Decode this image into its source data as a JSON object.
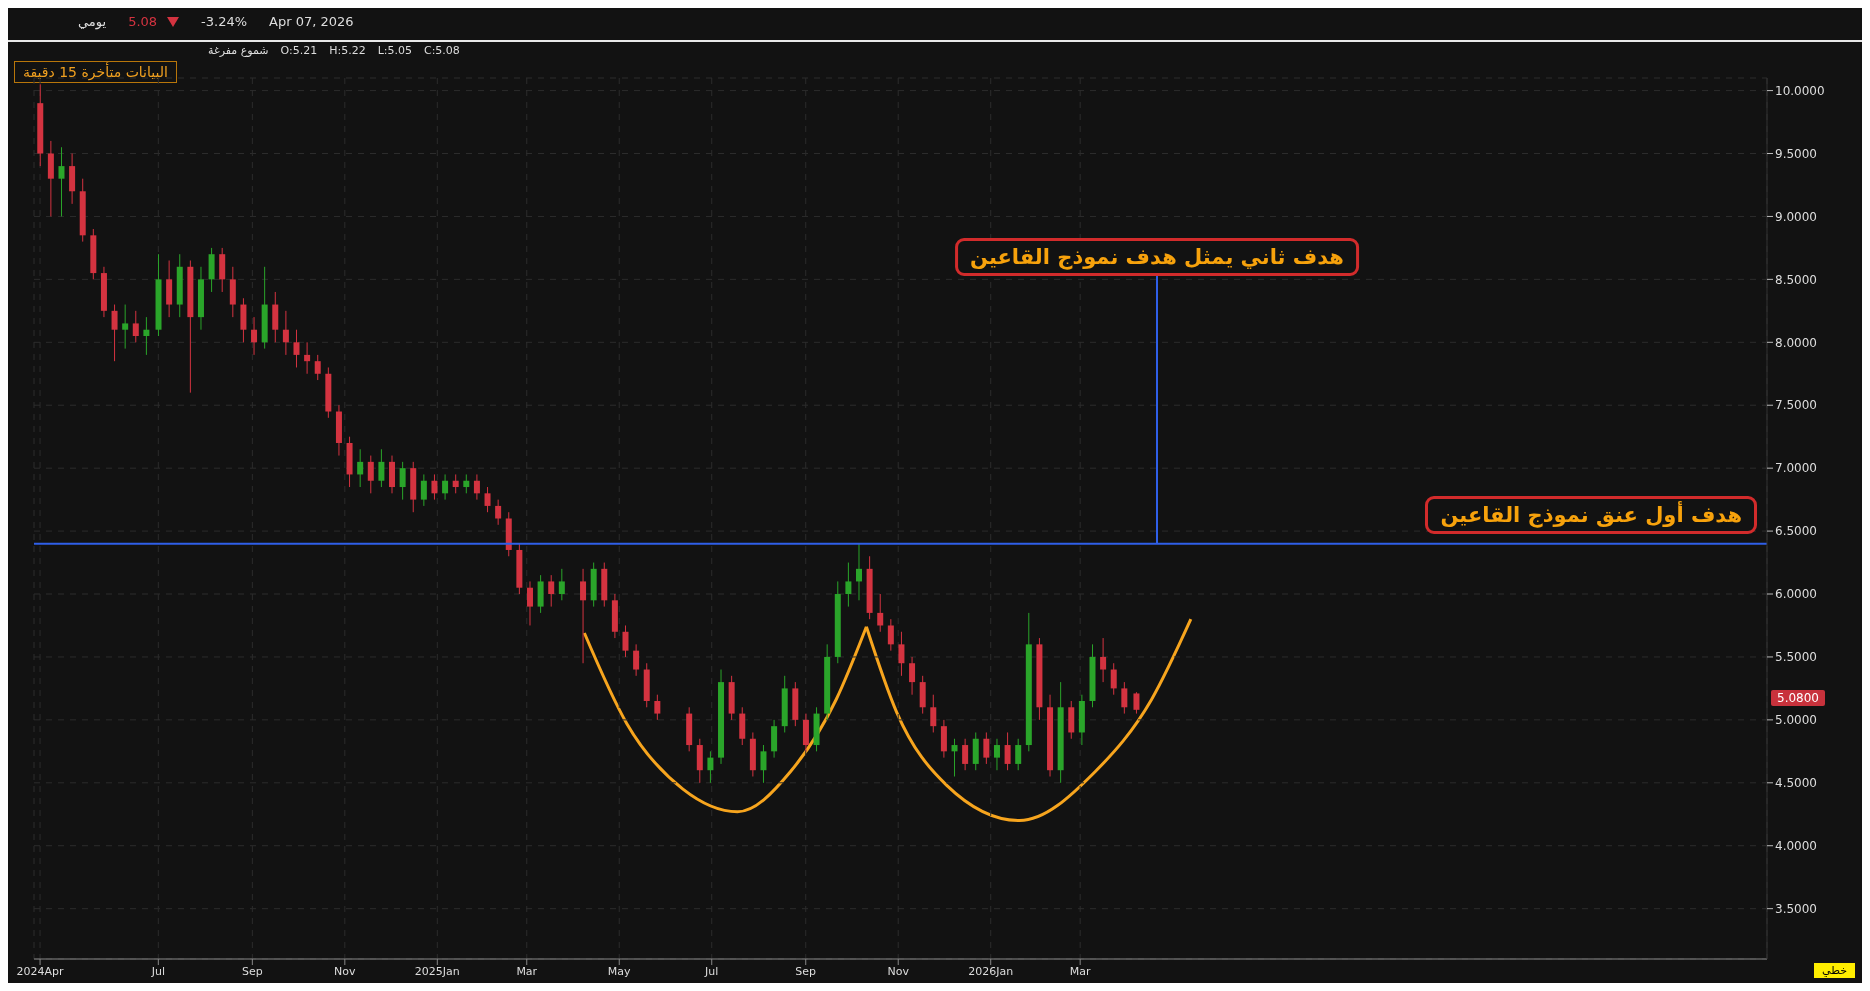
{
  "chart_data": {
    "type": "candlestick",
    "x": [
      "2024-04-14",
      "2024-04-21",
      "2024-04-28",
      "2024-05-05",
      "2024-05-12",
      "2024-05-19",
      "2024-05-26",
      "2024-06-02",
      "2024-06-09",
      "2024-06-16",
      "2024-06-23",
      "2024-07-01",
      "2024-07-08",
      "2024-07-15",
      "2024-07-22",
      "2024-07-29",
      "2024-08-05",
      "2024-08-12",
      "2024-08-19",
      "2024-08-26",
      "2024-09-02",
      "2024-09-09",
      "2024-09-16",
      "2024-09-23",
      "2024-09-30",
      "2024-10-07",
      "2024-10-14",
      "2024-10-21",
      "2024-10-28",
      "2024-11-04",
      "2024-11-11",
      "2024-11-18",
      "2024-11-25",
      "2024-12-02",
      "2024-12-09",
      "2024-12-16",
      "2024-12-23",
      "2024-12-30",
      "2025-01-06",
      "2025-01-13",
      "2025-01-20",
      "2025-01-27",
      "2025-02-03",
      "2025-02-10",
      "2025-02-17",
      "2025-02-24",
      "2025-03-03",
      "2025-03-10",
      "2025-03-17",
      "2025-03-24",
      "2025-04-07",
      "2025-04-14",
      "2025-04-21",
      "2025-04-28",
      "2025-05-05",
      "2025-05-12",
      "2025-05-19",
      "2025-05-26",
      "2025-06-16",
      "2025-06-23",
      "2025-06-30",
      "2025-07-07",
      "2025-07-14",
      "2025-07-21",
      "2025-07-28",
      "2025-08-04",
      "2025-08-11",
      "2025-08-18",
      "2025-08-25",
      "2025-09-01",
      "2025-09-08",
      "2025-09-15",
      "2025-09-22",
      "2025-09-29",
      "2025-10-06",
      "2025-10-13",
      "2025-10-20",
      "2025-10-27",
      "2025-11-03",
      "2025-11-10",
      "2025-11-17",
      "2025-11-24",
      "2025-12-01",
      "2025-12-08",
      "2025-12-15",
      "2025-12-22",
      "2025-12-29",
      "2026-01-05",
      "2026-01-12",
      "2026-01-19",
      "2026-01-26",
      "2026-02-02",
      "2026-02-09",
      "2026-02-16",
      "2026-02-23",
      "2026-03-02",
      "2026-03-09",
      "2026-03-16",
      "2026-03-23",
      "2026-03-30",
      "2026-04-07"
    ],
    "ohlc": [
      [
        9.9,
        10.05,
        9.4,
        9.5
      ],
      [
        9.5,
        9.6,
        9.0,
        9.3
      ],
      [
        9.3,
        9.55,
        9.0,
        9.4
      ],
      [
        9.4,
        9.5,
        9.1,
        9.2
      ],
      [
        9.2,
        9.3,
        8.8,
        8.85
      ],
      [
        8.85,
        8.9,
        8.5,
        8.55
      ],
      [
        8.55,
        8.6,
        8.2,
        8.25
      ],
      [
        8.25,
        8.3,
        7.85,
        8.1
      ],
      [
        8.1,
        8.3,
        7.95,
        8.15
      ],
      [
        8.15,
        8.25,
        8.0,
        8.05
      ],
      [
        8.05,
        8.2,
        7.9,
        8.1
      ],
      [
        8.1,
        8.7,
        8.05,
        8.5
      ],
      [
        8.5,
        8.65,
        8.2,
        8.3
      ],
      [
        8.3,
        8.7,
        8.2,
        8.6
      ],
      [
        8.6,
        8.65,
        7.6,
        8.2
      ],
      [
        8.2,
        8.6,
        8.1,
        8.5
      ],
      [
        8.5,
        8.75,
        8.4,
        8.7
      ],
      [
        8.7,
        8.75,
        8.4,
        8.5
      ],
      [
        8.5,
        8.6,
        8.2,
        8.3
      ],
      [
        8.3,
        8.35,
        8.0,
        8.1
      ],
      [
        8.1,
        8.2,
        7.9,
        8.0
      ],
      [
        8.0,
        8.6,
        7.95,
        8.3
      ],
      [
        8.3,
        8.4,
        8.0,
        8.1
      ],
      [
        8.1,
        8.25,
        7.9,
        8.0
      ],
      [
        8.0,
        8.1,
        7.8,
        7.9
      ],
      [
        7.9,
        8.0,
        7.75,
        7.85
      ],
      [
        7.85,
        7.9,
        7.7,
        7.75
      ],
      [
        7.75,
        7.8,
        7.4,
        7.45
      ],
      [
        7.45,
        7.5,
        7.1,
        7.2
      ],
      [
        7.2,
        7.25,
        6.85,
        6.95
      ],
      [
        6.95,
        7.15,
        6.85,
        7.05
      ],
      [
        7.05,
        7.1,
        6.8,
        6.9
      ],
      [
        6.9,
        7.15,
        6.85,
        7.05
      ],
      [
        7.05,
        7.1,
        6.8,
        6.85
      ],
      [
        6.85,
        7.05,
        6.75,
        7.0
      ],
      [
        7.0,
        7.05,
        6.65,
        6.75
      ],
      [
        6.75,
        6.95,
        6.7,
        6.9
      ],
      [
        6.9,
        6.95,
        6.75,
        6.8
      ],
      [
        6.8,
        6.95,
        6.75,
        6.9
      ],
      [
        6.9,
        6.95,
        6.8,
        6.85
      ],
      [
        6.85,
        6.95,
        6.8,
        6.9
      ],
      [
        6.9,
        6.95,
        6.75,
        6.8
      ],
      [
        6.8,
        6.85,
        6.65,
        6.7
      ],
      [
        6.7,
        6.75,
        6.55,
        6.6
      ],
      [
        6.6,
        6.65,
        6.3,
        6.35
      ],
      [
        6.35,
        6.4,
        6.0,
        6.05
      ],
      [
        6.05,
        6.1,
        5.75,
        5.9
      ],
      [
        5.9,
        6.15,
        5.85,
        6.1
      ],
      [
        6.1,
        6.15,
        5.9,
        6.0
      ],
      [
        6.0,
        6.2,
        5.95,
        6.1
      ],
      [
        6.1,
        6.2,
        5.45,
        5.95
      ],
      [
        5.95,
        6.25,
        5.9,
        6.2
      ],
      [
        6.2,
        6.25,
        5.9,
        5.95
      ],
      [
        5.95,
        6.0,
        5.65,
        5.7
      ],
      [
        5.7,
        5.75,
        5.5,
        5.55
      ],
      [
        5.55,
        5.6,
        5.35,
        5.4
      ],
      [
        5.4,
        5.45,
        5.1,
        5.15
      ],
      [
        5.15,
        5.2,
        5.0,
        5.05
      ],
      [
        5.05,
        5.1,
        4.75,
        4.8
      ],
      [
        4.8,
        4.85,
        4.5,
        4.6
      ],
      [
        4.6,
        4.75,
        4.5,
        4.7
      ],
      [
        4.7,
        5.4,
        4.65,
        5.3
      ],
      [
        5.3,
        5.35,
        5.0,
        5.05
      ],
      [
        5.05,
        5.1,
        4.8,
        4.85
      ],
      [
        4.85,
        4.9,
        4.55,
        4.6
      ],
      [
        4.6,
        4.8,
        4.5,
        4.75
      ],
      [
        4.75,
        5.0,
        4.7,
        4.95
      ],
      [
        4.95,
        5.35,
        4.9,
        5.25
      ],
      [
        5.25,
        5.3,
        4.95,
        5.0
      ],
      [
        5.0,
        5.05,
        4.75,
        4.8
      ],
      [
        4.8,
        5.1,
        4.75,
        5.05
      ],
      [
        5.05,
        5.6,
        5.0,
        5.5
      ],
      [
        5.5,
        6.1,
        5.45,
        6.0
      ],
      [
        6.0,
        6.25,
        5.9,
        6.1
      ],
      [
        6.1,
        6.4,
        5.95,
        6.2
      ],
      [
        6.2,
        6.3,
        5.8,
        5.85
      ],
      [
        5.85,
        6.0,
        5.7,
        5.75
      ],
      [
        5.75,
        5.8,
        5.55,
        5.6
      ],
      [
        5.6,
        5.7,
        5.35,
        5.45
      ],
      [
        5.45,
        5.5,
        5.2,
        5.3
      ],
      [
        5.3,
        5.35,
        5.05,
        5.1
      ],
      [
        5.1,
        5.2,
        4.9,
        4.95
      ],
      [
        4.95,
        5.0,
        4.7,
        4.75
      ],
      [
        4.75,
        4.85,
        4.55,
        4.8
      ],
      [
        4.8,
        4.85,
        4.6,
        4.65
      ],
      [
        4.65,
        4.9,
        4.6,
        4.85
      ],
      [
        4.85,
        4.9,
        4.65,
        4.7
      ],
      [
        4.7,
        4.85,
        4.6,
        4.8
      ],
      [
        4.8,
        4.9,
        4.6,
        4.65
      ],
      [
        4.65,
        4.85,
        4.6,
        4.8
      ],
      [
        4.8,
        5.85,
        4.75,
        5.6
      ],
      [
        5.6,
        5.65,
        5.0,
        5.1
      ],
      [
        5.1,
        5.2,
        4.55,
        4.6
      ],
      [
        4.6,
        5.3,
        4.5,
        5.1
      ],
      [
        5.1,
        5.15,
        4.85,
        4.9
      ],
      [
        4.9,
        5.2,
        4.8,
        5.15
      ],
      [
        5.15,
        5.6,
        5.1,
        5.5
      ],
      [
        5.5,
        5.65,
        5.3,
        5.4
      ],
      [
        5.4,
        5.45,
        5.2,
        5.25
      ],
      [
        5.25,
        5.3,
        5.05,
        5.1
      ],
      [
        5.21,
        5.22,
        5.05,
        5.08
      ]
    ],
    "xlim": [
      "2024-04-10",
      "2027-05-28"
    ],
    "xticks": [
      {
        "value": "2024-04-14",
        "label": "2024Apr"
      },
      {
        "value": "2024-07-01",
        "label": "Jul"
      },
      {
        "value": "2024-09-01",
        "label": "Sep"
      },
      {
        "value": "2024-11-01",
        "label": "Nov"
      },
      {
        "value": "2025-01-01",
        "label": "2025Jan"
      },
      {
        "value": "2025-03-01",
        "label": "Mar"
      },
      {
        "value": "2025-05-01",
        "label": "May"
      },
      {
        "value": "2025-07-01",
        "label": "Jul"
      },
      {
        "value": "2025-09-01",
        "label": "Sep"
      },
      {
        "value": "2025-11-01",
        "label": "Nov"
      },
      {
        "value": "2026-01-01",
        "label": "2026Jan"
      },
      {
        "value": "2026-03-01",
        "label": "Mar"
      }
    ],
    "ylim": [
      3.1,
      10.1
    ],
    "yticks": [
      {
        "value": 3.5,
        "label": "3.5000"
      },
      {
        "value": 4,
        "label": "4.0000"
      },
      {
        "value": 4.5,
        "label": "4.5000"
      },
      {
        "value": 5,
        "label": "5.0000"
      },
      {
        "value": 5.5,
        "label": "5.5000"
      },
      {
        "value": 6,
        "label": "6.0000"
      },
      {
        "value": 6.5,
        "label": "6.5000"
      },
      {
        "value": 7,
        "label": "7.0000"
      },
      {
        "value": 7.5,
        "label": "7.5000"
      },
      {
        "value": 8,
        "label": "8.0000"
      },
      {
        "value": 8.5,
        "label": "8.5000"
      },
      {
        "value": 9,
        "label": "9.0000"
      },
      {
        "value": 9.5,
        "label": "9.5000"
      },
      {
        "value": 10,
        "label": "10.0000"
      }
    ],
    "series": [
      {
        "type": "line",
        "color": "#f7a51e",
        "x": [
          "2025-04-08",
          "2025-05-06",
          "2025-06-12",
          "2025-07-18",
          "2025-08-22",
          "2025-09-21",
          "2025-10-11"
        ],
        "values": [
          5.69,
          4.97,
          4.45,
          4.27,
          4.59,
          5.16,
          5.74
        ]
      },
      {
        "type": "line",
        "color": "#f7a51e",
        "x": [
          "2025-10-11",
          "2025-10-31",
          "2025-12-03",
          "2026-01-20",
          "2026-03-11",
          "2026-04-17",
          "2026-05-13"
        ],
        "values": [
          5.74,
          5.06,
          4.48,
          4.2,
          4.59,
          5.16,
          5.8
        ]
      }
    ],
    "grid": true,
    "ref_lines": [
      {
        "axis": "y",
        "value": 6.4,
        "label": "هدف أول عنق نموذج القاعين",
        "color": "#2f5fe8"
      }
    ],
    "annotations": [
      "يومي",
      "5.08",
      "-3.24%",
      "Apr 07, 2026",
      "شموع مفرغة",
      "O:5.21",
      "H:5.22",
      "L:5.05",
      "C:5.08",
      "البيانات متأخرة 15 دقيقة",
      "خطي",
      "هدف ثاني يمثل هدف نموذج القاعين",
      "5.0800"
    ]
  }
}
